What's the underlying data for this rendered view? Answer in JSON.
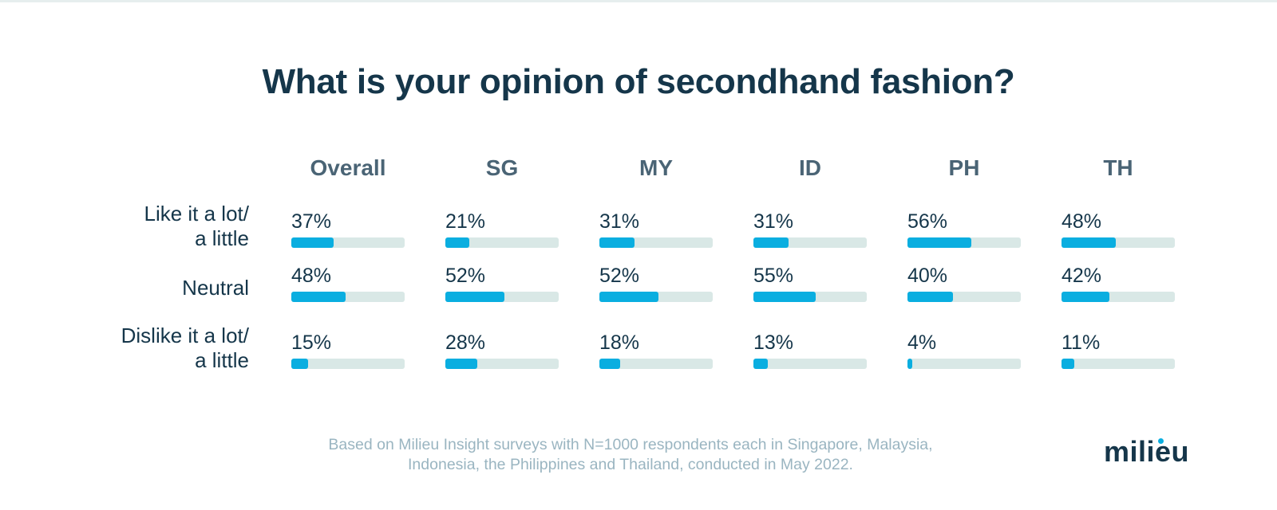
{
  "title": "What is your opinion of secondhand fashion?",
  "chart_data": {
    "type": "bar",
    "title": "What is your opinion of secondhand fashion?",
    "columns": [
      "Overall",
      "SG",
      "MY",
      "ID",
      "PH",
      "TH"
    ],
    "rows": [
      {
        "label_lines": [
          "Like it a lot/",
          "a little"
        ],
        "values": [
          37,
          21,
          31,
          31,
          56,
          48
        ]
      },
      {
        "label_lines": [
          "Neutral"
        ],
        "values": [
          48,
          52,
          52,
          55,
          40,
          42
        ]
      },
      {
        "label_lines": [
          "Dislike it a lot/",
          "a little"
        ],
        "values": [
          15,
          28,
          18,
          13,
          4,
          11
        ]
      }
    ],
    "unit": "%",
    "value_range": [
      0,
      100
    ],
    "colors": {
      "bar": "#0aaee0",
      "track": "#d9e8e6"
    }
  },
  "footnote": {
    "line1": "Based on Milieu Insight surveys with N=1000 respondents each in Singapore, Malaysia,",
    "line2": "Indonesia, the Philippines and Thailand, conducted in May 2022."
  },
  "logo": {
    "text": "milieu",
    "dot_color": "#0aaee0"
  }
}
